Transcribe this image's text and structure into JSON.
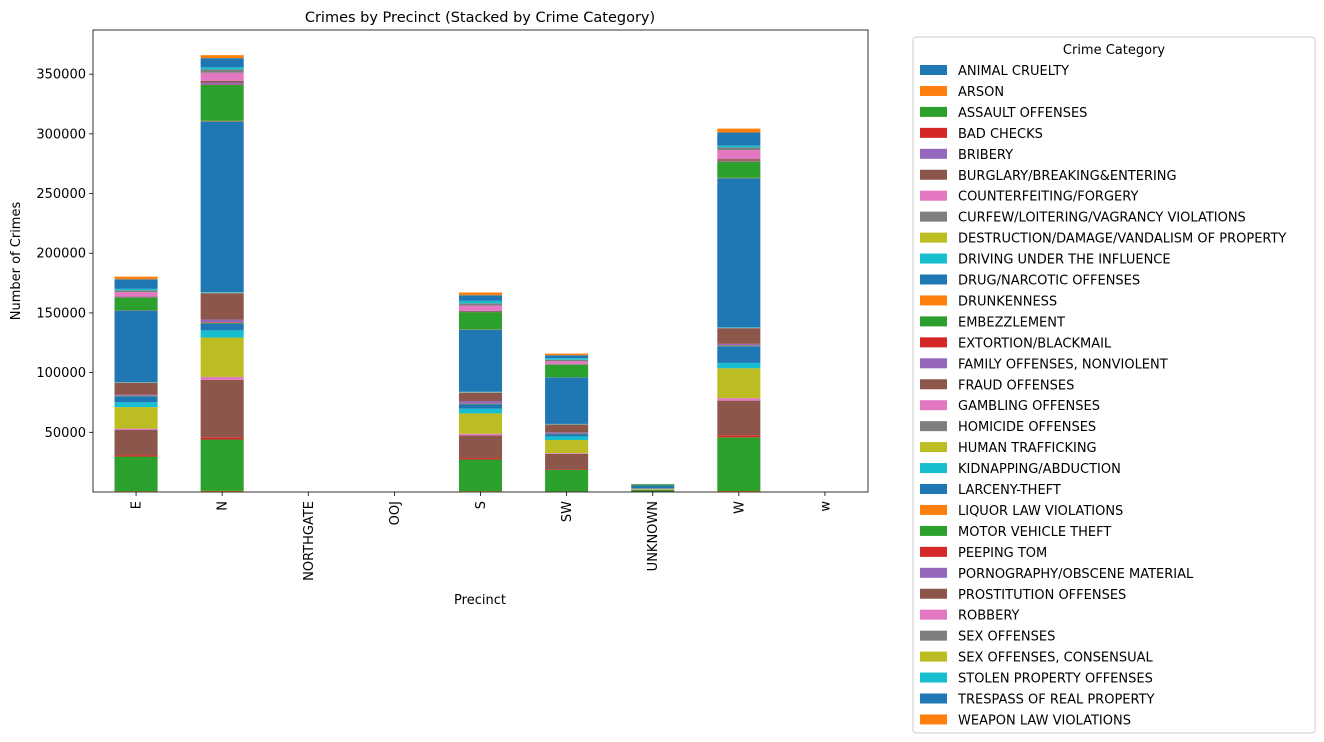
{
  "chart_data": {
    "type": "bar",
    "stacked": true,
    "title": "Crimes by Precinct (Stacked by Crime Category)",
    "xlabel": "Precinct",
    "ylabel": "Number of Crimes",
    "ylim": [
      0,
      387000
    ],
    "yticks": [
      50000,
      100000,
      150000,
      200000,
      250000,
      300000,
      350000
    ],
    "grid": false,
    "legend_title": "Crime Category",
    "legend_position": "outside-right",
    "categories": [
      "E",
      "N",
      "NORTHGATE",
      "OOJ",
      "S",
      "SW",
      "UNKNOWN",
      "W",
      "w"
    ],
    "series": [
      {
        "name": "ANIMAL CRUELTY",
        "color": "#1f77b4",
        "values": [
          100,
          150,
          0,
          0,
          100,
          80,
          5,
          120,
          0
        ]
      },
      {
        "name": "ARSON",
        "color": "#ff7f0e",
        "values": [
          600,
          800,
          0,
          0,
          600,
          400,
          10,
          700,
          0
        ]
      },
      {
        "name": "ASSAULT OFFENSES",
        "color": "#2ca02c",
        "values": [
          29000,
          43000,
          0,
          0,
          26500,
          18000,
          1200,
          45000,
          0
        ]
      },
      {
        "name": "BAD CHECKS",
        "color": "#d62728",
        "values": [
          1200,
          1900,
          0,
          0,
          1200,
          400,
          20,
          1700,
          0
        ]
      },
      {
        "name": "BRIBERY",
        "color": "#9467bd",
        "values": [
          20,
          30,
          0,
          0,
          20,
          10,
          0,
          30,
          0
        ]
      },
      {
        "name": "BURGLARY/BREAKING&ENTERING",
        "color": "#8c564b",
        "values": [
          21000,
          48000,
          0,
          0,
          19000,
          13000,
          500,
          29000,
          0
        ]
      },
      {
        "name": "COUNTERFEITING/FORGERY",
        "color": "#e377c2",
        "values": [
          1100,
          2400,
          0,
          0,
          1300,
          600,
          20,
          2000,
          0
        ]
      },
      {
        "name": "CURFEW/LOITERING/VAGRANCY VIOLATIONS",
        "color": "#7f7f7f",
        "values": [
          100,
          100,
          0,
          0,
          100,
          50,
          0,
          100,
          0
        ]
      },
      {
        "name": "DESTRUCTION/DAMAGE/VANDALISM OF PROPERTY",
        "color": "#bcbd22",
        "values": [
          18000,
          33000,
          0,
          0,
          17000,
          11000,
          600,
          25000,
          0
        ]
      },
      {
        "name": "DRIVING UNDER THE INFLUENCE",
        "color": "#17becf",
        "values": [
          4000,
          6000,
          0,
          0,
          4000,
          3000,
          200,
          4500,
          0
        ]
      },
      {
        "name": "DRUG/NARCOTIC OFFENSES",
        "color": "#1f77b4",
        "values": [
          5000,
          5700,
          0,
          0,
          3500,
          2000,
          150,
          14000,
          0
        ]
      },
      {
        "name": "DRUNKENNESS",
        "color": "#ff7f0e",
        "values": [
          50,
          60,
          0,
          0,
          40,
          30,
          0,
          50,
          0
        ]
      },
      {
        "name": "EMBEZZLEMENT",
        "color": "#2ca02c",
        "values": [
          300,
          600,
          0,
          0,
          400,
          300,
          10,
          400,
          0
        ]
      },
      {
        "name": "EXTORTION/BLACKMAIL",
        "color": "#d62728",
        "values": [
          200,
          500,
          0,
          0,
          200,
          100,
          5,
          300,
          0
        ]
      },
      {
        "name": "FAMILY OFFENSES, NONVIOLENT",
        "color": "#9467bd",
        "values": [
          800,
          2200,
          0,
          0,
          2200,
          1000,
          30,
          1200,
          0
        ]
      },
      {
        "name": "FRAUD OFFENSES",
        "color": "#8c564b",
        "values": [
          10000,
          22000,
          0,
          0,
          7000,
          6500,
          400,
          13000,
          0
        ]
      },
      {
        "name": "GAMBLING OFFENSES",
        "color": "#e377c2",
        "values": [
          20,
          30,
          0,
          0,
          20,
          10,
          0,
          20,
          0
        ]
      },
      {
        "name": "HOMICIDE OFFENSES",
        "color": "#7f7f7f",
        "values": [
          200,
          400,
          0,
          0,
          300,
          200,
          5,
          300,
          0
        ]
      },
      {
        "name": "HUMAN TRAFFICKING",
        "color": "#bcbd22",
        "values": [
          50,
          100,
          0,
          0,
          100,
          50,
          0,
          100,
          0
        ]
      },
      {
        "name": "KIDNAPPING/ABDUCTION",
        "color": "#17becf",
        "values": [
          300,
          500,
          0,
          0,
          400,
          300,
          10,
          400,
          0
        ]
      },
      {
        "name": "LARCENY-THEFT",
        "color": "#1f77b4",
        "values": [
          60000,
          143000,
          0,
          0,
          52000,
          39000,
          2200,
          125000,
          0
        ]
      },
      {
        "name": "LIQUOR LAW VIOLATIONS",
        "color": "#ff7f0e",
        "values": [
          300,
          500,
          0,
          0,
          200,
          100,
          5,
          300,
          0
        ]
      },
      {
        "name": "MOTOR VEHICLE THEFT",
        "color": "#2ca02c",
        "values": [
          10500,
          30000,
          0,
          0,
          14500,
          10500,
          900,
          13500,
          0
        ]
      },
      {
        "name": "PEEPING TOM",
        "color": "#d62728",
        "values": [
          100,
          300,
          0,
          0,
          100,
          100,
          5,
          150,
          0
        ]
      },
      {
        "name": "PORNOGRAPHY/OBSCENE MATERIAL",
        "color": "#9467bd",
        "values": [
          500,
          1700,
          0,
          0,
          400,
          400,
          10,
          500,
          0
        ]
      },
      {
        "name": "PROSTITUTION OFFENSES",
        "color": "#8c564b",
        "values": [
          500,
          1500,
          0,
          0,
          500,
          300,
          10,
          1500,
          0
        ]
      },
      {
        "name": "ROBBERY",
        "color": "#e377c2",
        "values": [
          3500,
          6700,
          0,
          0,
          4500,
          2000,
          100,
          7500,
          0
        ]
      },
      {
        "name": "SEX OFFENSES",
        "color": "#7f7f7f",
        "values": [
          1500,
          2700,
          0,
          0,
          1800,
          1300,
          80,
          2200,
          0
        ]
      },
      {
        "name": "SEX OFFENSES, CONSENSUAL",
        "color": "#bcbd22",
        "values": [
          50,
          50,
          0,
          0,
          50,
          30,
          0,
          50,
          0
        ]
      },
      {
        "name": "STOLEN PROPERTY OFFENSES",
        "color": "#17becf",
        "values": [
          1200,
          1800,
          0,
          0,
          2100,
          1300,
          50,
          1500,
          0
        ]
      },
      {
        "name": "TRESPASS OF REAL PROPERTY",
        "color": "#1f77b4",
        "values": [
          8000,
          7700,
          0,
          0,
          4700,
          2500,
          150,
          11000,
          0
        ]
      },
      {
        "name": "WEAPON LAW VIOLATIONS",
        "color": "#ff7f0e",
        "values": [
          2200,
          2500,
          0,
          0,
          2300,
          1400,
          50,
          3300,
          0
        ]
      }
    ]
  }
}
